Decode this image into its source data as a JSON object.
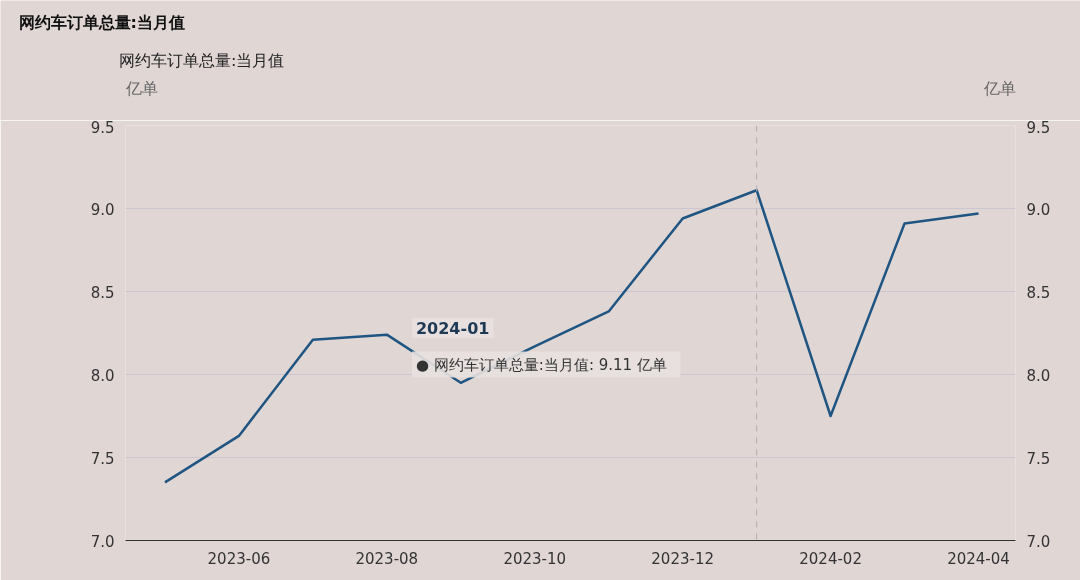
{
  "chart_data": {
    "type": "line",
    "title": "网约车订单总量:当月值",
    "ylabel": "亿单",
    "y2label": "亿单",
    "x": [
      "2023-05",
      "2023-06",
      "2023-07",
      "2023-08",
      "2023-09",
      "2023-10",
      "2023-11",
      "2023-12",
      "2024-01",
      "2024-02",
      "2024-03",
      "2024-04"
    ],
    "series": [
      {
        "name": "网约车订单总量:当月值",
        "color": "#1f5582",
        "values": [
          7.35,
          7.63,
          8.21,
          8.24,
          7.95,
          8.17,
          8.38,
          8.94,
          9.11,
          7.75,
          8.91,
          8.97
        ]
      }
    ],
    "xlim": [
      "2023-04-15",
      "2024-04-16"
    ],
    "xticks": [
      "2023-06",
      "2023-08",
      "2023-10",
      "2023-12",
      "2024-02",
      "2024-04"
    ],
    "ylim": [
      7.0,
      9.5
    ],
    "yticks": [
      {
        "value": 7,
        "label": "7.0"
      },
      7.5,
      {
        "value": 8,
        "label": "8.0"
      },
      8.5,
      {
        "value": 9,
        "label": "9.0"
      },
      9.5
    ],
    "y2lim": [
      7.0,
      9.5
    ],
    "y2ticks": [
      {
        "value": 7,
        "label": "7.0"
      },
      7.5,
      {
        "value": 8,
        "label": "8.0"
      },
      8.5,
      {
        "value": 9,
        "label": "9.0"
      },
      9.5
    ],
    "ref_lines": [
      {
        "axis": "x",
        "value": "2024-01",
        "color": "#b5adab",
        "line_style": "dashed"
      }
    ],
    "annotations": [
      "2024-01",
      "● 网约车订单总量:当月值:   9.11 亿单"
    ],
    "grid": "y",
    "legend": "top left",
    "marker": "none",
    "line_style": "solid"
  }
}
